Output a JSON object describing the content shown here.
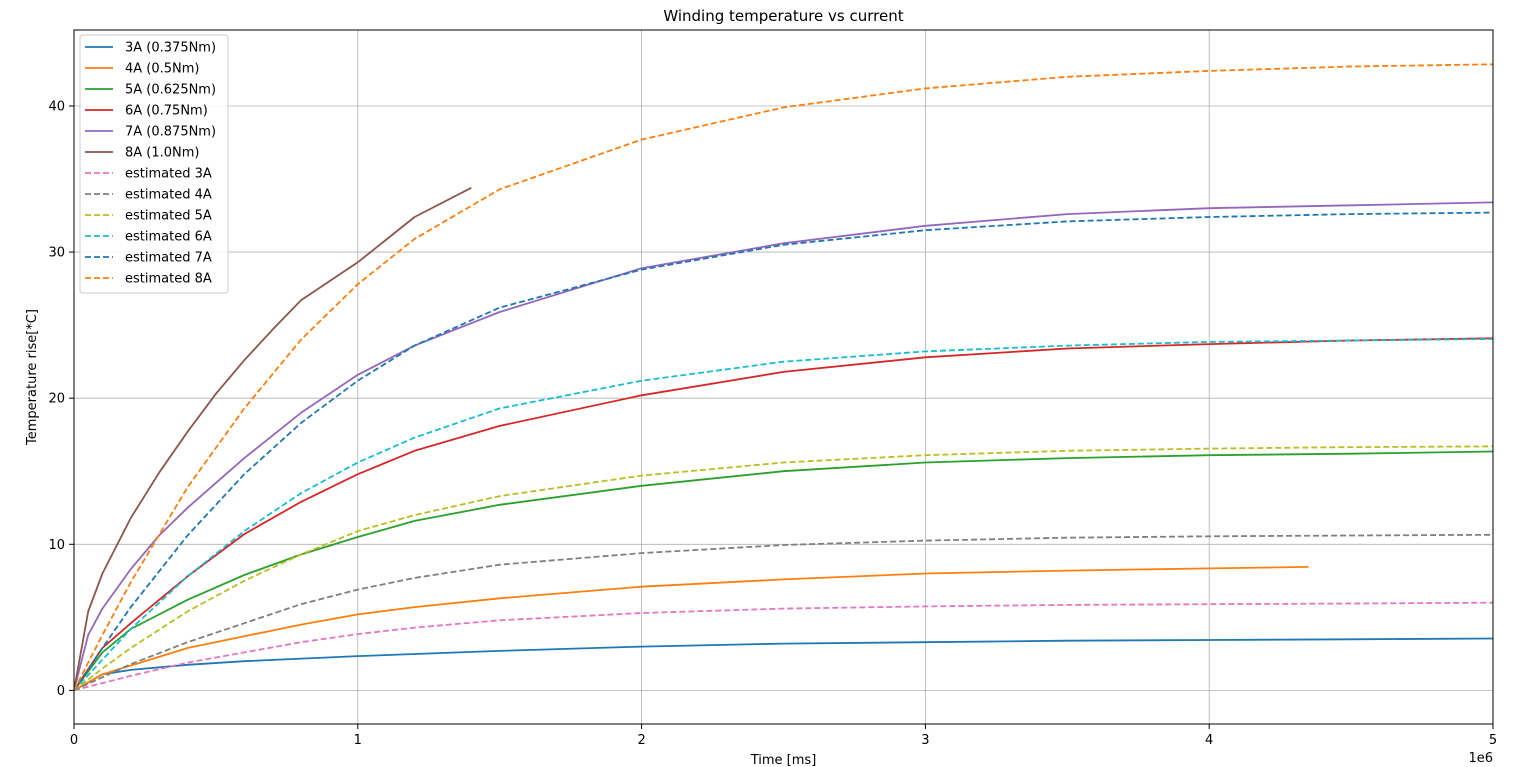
{
  "chart_data": {
    "type": "line",
    "title": "Winding temperature vs current",
    "xlabel": "Time [ms]",
    "ylabel": "Temperature rise[*C]",
    "x_offset_label": "1e6",
    "xlim": [
      0,
      5000000
    ],
    "ylim": [
      -2.3,
      45.2
    ],
    "x_ticks": [
      0,
      1000000,
      2000000,
      3000000,
      4000000,
      5000000
    ],
    "x_tick_labels": [
      "0",
      "1",
      "2",
      "3",
      "4",
      "5"
    ],
    "y_ticks": [
      0,
      10,
      20,
      30,
      40
    ],
    "y_tick_labels": [
      "0",
      "10",
      "20",
      "30",
      "40"
    ],
    "grid": true,
    "legend_position": "top-left",
    "series": [
      {
        "name": "3A (0.375Nm)",
        "color": "#1f77b4",
        "style": "solid",
        "x": [
          0,
          100000,
          200000,
          400000,
          600000,
          1000000,
          1500000,
          2000000,
          2500000,
          3000000,
          3500000,
          4000000,
          4500000,
          5000000
        ],
        "y": [
          0,
          1.1,
          1.4,
          1.75,
          2.0,
          2.35,
          2.7,
          3.0,
          3.2,
          3.3,
          3.4,
          3.45,
          3.5,
          3.55
        ]
      },
      {
        "name": "4A (0.5Nm)",
        "color": "#ff7f0e",
        "style": "solid",
        "x": [
          0,
          100000,
          200000,
          400000,
          600000,
          800000,
          1000000,
          1200000,
          1500000,
          2000000,
          2500000,
          3000000,
          3500000,
          4000000,
          4350000
        ],
        "y": [
          0,
          1.1,
          1.7,
          2.9,
          3.7,
          4.5,
          5.2,
          5.7,
          6.3,
          7.1,
          7.6,
          8.0,
          8.2,
          8.35,
          8.45
        ]
      },
      {
        "name": "5A (0.625Nm)",
        "color": "#2ca02c",
        "style": "solid",
        "x": [
          0,
          100000,
          200000,
          400000,
          600000,
          800000,
          1000000,
          1200000,
          1500000,
          2000000,
          2500000,
          3000000,
          3500000,
          4000000,
          4500000,
          5000000
        ],
        "y": [
          0,
          2.6,
          4.2,
          6.2,
          7.9,
          9.3,
          10.5,
          11.6,
          12.7,
          14.0,
          15.0,
          15.6,
          15.9,
          16.1,
          16.2,
          16.35
        ]
      },
      {
        "name": "6A (0.75Nm)",
        "color": "#d62728",
        "style": "solid",
        "x": [
          0,
          100000,
          200000,
          400000,
          600000,
          800000,
          1000000,
          1200000,
          1500000,
          2000000,
          2500000,
          3000000,
          3500000,
          4000000,
          4500000,
          5000000
        ],
        "y": [
          0,
          2.9,
          4.6,
          7.8,
          10.7,
          12.9,
          14.8,
          16.4,
          18.1,
          20.2,
          21.8,
          22.8,
          23.4,
          23.7,
          23.95,
          24.1
        ]
      },
      {
        "name": "7A (0.875Nm)",
        "color": "#9467bd",
        "style": "solid",
        "x": [
          0,
          50000,
          100000,
          200000,
          300000,
          400000,
          600000,
          800000,
          1000000,
          1200000,
          1500000,
          2000000,
          2500000,
          3000000,
          3500000,
          4000000,
          4500000,
          5000000
        ],
        "y": [
          0,
          3.8,
          5.6,
          8.3,
          10.6,
          12.5,
          15.9,
          19.0,
          21.6,
          23.6,
          25.9,
          28.9,
          30.6,
          31.8,
          32.6,
          33.0,
          33.2,
          33.4
        ]
      },
      {
        "name": "8A (1.0Nm)",
        "color": "#8c564b",
        "style": "solid",
        "x": [
          0,
          50000,
          100000,
          200000,
          300000,
          400000,
          500000,
          600000,
          700000,
          800000,
          1000000,
          1200000,
          1400000
        ],
        "y": [
          0,
          5.4,
          8.0,
          11.8,
          14.9,
          17.7,
          20.3,
          22.6,
          24.7,
          26.7,
          29.3,
          32.4,
          34.4
        ]
      },
      {
        "name": "estimated 3A",
        "color": "#e377c2",
        "style": "dashed",
        "x": [
          0,
          100000,
          200000,
          400000,
          600000,
          800000,
          1000000,
          1200000,
          1500000,
          2000000,
          2500000,
          3000000,
          3500000,
          4000000,
          4500000,
          5000000
        ],
        "y": [
          0,
          0.5,
          1.0,
          1.9,
          2.6,
          3.3,
          3.85,
          4.3,
          4.8,
          5.3,
          5.6,
          5.75,
          5.85,
          5.9,
          5.95,
          6.0
        ]
      },
      {
        "name": "estimated 4A",
        "color": "#7f7f7f",
        "style": "dashed",
        "x": [
          0,
          100000,
          200000,
          400000,
          600000,
          800000,
          1000000,
          1200000,
          1500000,
          2000000,
          2500000,
          3000000,
          3500000,
          4000000,
          4500000,
          5000000
        ],
        "y": [
          0,
          0.9,
          1.8,
          3.3,
          4.6,
          5.9,
          6.9,
          7.7,
          8.6,
          9.4,
          9.95,
          10.25,
          10.45,
          10.55,
          10.6,
          10.65
        ]
      },
      {
        "name": "estimated 5A",
        "color": "#bcbd22",
        "style": "dashed",
        "x": [
          0,
          100000,
          200000,
          400000,
          600000,
          800000,
          1000000,
          1200000,
          1500000,
          2000000,
          2500000,
          3000000,
          3500000,
          4000000,
          4500000,
          5000000
        ],
        "y": [
          0,
          1.5,
          2.9,
          5.4,
          7.5,
          9.3,
          10.9,
          12.0,
          13.3,
          14.7,
          15.6,
          16.1,
          16.4,
          16.55,
          16.65,
          16.7
        ]
      },
      {
        "name": "estimated 6A",
        "color": "#17becf",
        "style": "dashed",
        "x": [
          0,
          100000,
          200000,
          400000,
          600000,
          800000,
          1000000,
          1200000,
          1500000,
          2000000,
          2500000,
          3000000,
          3500000,
          4000000,
          4500000,
          5000000
        ],
        "y": [
          0,
          2.1,
          4.2,
          7.8,
          10.9,
          13.5,
          15.6,
          17.3,
          19.3,
          21.2,
          22.5,
          23.2,
          23.6,
          23.85,
          23.95,
          24.05
        ]
      },
      {
        "name": "estimated 7A",
        "color": "#1f77b4",
        "style": "dashed",
        "x": [
          0,
          100000,
          200000,
          400000,
          600000,
          800000,
          1000000,
          1200000,
          1500000,
          2000000,
          2500000,
          3000000,
          3500000,
          4000000,
          4500000,
          5000000
        ],
        "y": [
          0,
          2.9,
          5.7,
          10.6,
          14.8,
          18.3,
          21.2,
          23.6,
          26.2,
          28.8,
          30.5,
          31.5,
          32.1,
          32.4,
          32.6,
          32.7
        ]
      },
      {
        "name": "estimated 8A",
        "color": "#ff7f0e",
        "style": "dashed",
        "x": [
          0,
          100000,
          200000,
          400000,
          600000,
          800000,
          1000000,
          1200000,
          1500000,
          2000000,
          2500000,
          3000000,
          3500000,
          4000000,
          4500000,
          5000000
        ],
        "y": [
          0,
          3.8,
          7.4,
          13.9,
          19.3,
          24.0,
          27.8,
          30.9,
          34.3,
          37.7,
          39.9,
          41.2,
          42.0,
          42.4,
          42.7,
          42.85
        ]
      }
    ]
  }
}
